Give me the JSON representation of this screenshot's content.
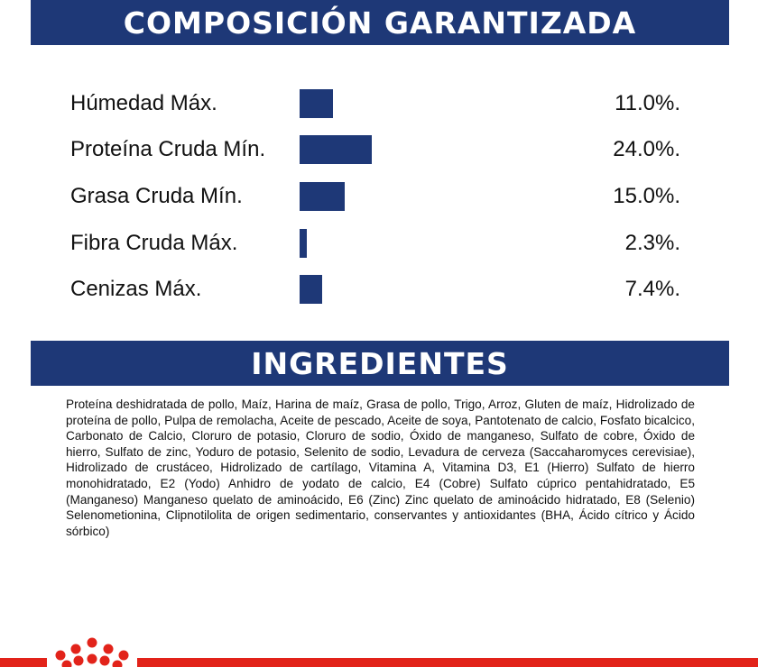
{
  "composition": {
    "title": "COMPOSICIÓN GARANTIZADA",
    "rows": [
      {
        "label": "Húmedad Máx.",
        "value": "11.0%.",
        "percent": 11.0
      },
      {
        "label": "Proteína Cruda Mín.",
        "value": "24.0%.",
        "percent": 24.0
      },
      {
        "label": "Grasa Cruda Mín.",
        "value": "15.0%.",
        "percent": 15.0
      },
      {
        "label": "Fibra Cruda Máx.",
        "value": "2.3%.",
        "percent": 2.3
      },
      {
        "label": "Cenizas Máx.",
        "value": "7.4%.",
        "percent": 7.4
      }
    ],
    "bar_color": "#1e3877"
  },
  "ingredients": {
    "title": "INGREDIENTES",
    "text": "Proteína deshidratada de pollo, Maíz, Harina de maíz, Grasa de pollo, Trigo, Arroz, Gluten de maíz, Hidrolizado de proteína de pollo, Pulpa de remolacha, Aceite de pescado, Aceite de soya, Pantotenato de calcio, Fosfato bicalcico, Carbonato de Calcio, Cloruro de potasio, Cloruro de sodio, Óxido de manganeso, Sulfato de cobre, Óxido de hierro, Sulfato de zinc, Yoduro de potasio, Selenito de sodio, Levadura de cerveza (Saccaharomyces cerevisiae), Hidrolizado de crustáceo, Hidrolizado de cartílago, Vitamina A, Vitamina D3, E1 (Hierro) Sulfato de hierro monohidratado, E2 (Yodo) Anhidro de yodato de calcio, E4 (Cobre) Sulfato cúprico pentahidratado, E5 (Manganeso) Manganeso quelato de aminoácido, E6 (Zinc) Zinc quelato de aminoácido hidratado, E8 (Selenio) Selenometionina, Clipnotilolita de origen sedimentario, conservantes y antioxidantes (BHA, Ácido cítrico y Ácido sórbico)"
  },
  "footer": {
    "brand_color": "#e2231a",
    "logo": "royal-canin-crown-dots"
  }
}
